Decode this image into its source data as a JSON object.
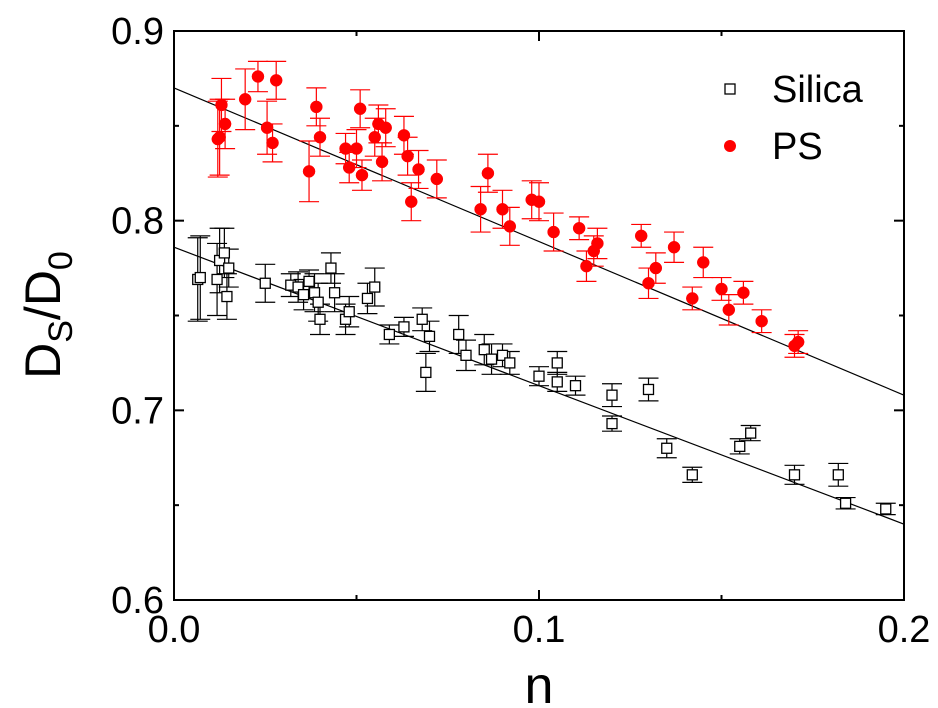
{
  "chart_data": {
    "type": "scatter",
    "xlabel": "n",
    "ylabel": {
      "main": "D",
      "sub1": "S",
      "slash": "/D",
      "sub2": "0"
    },
    "xlim": [
      0.0,
      0.2
    ],
    "ylim": [
      0.6,
      0.9
    ],
    "xticks": [
      "0.0",
      "0.1",
      "0.2"
    ],
    "yticks": [
      "0.6",
      "0.7",
      "0.8",
      "0.9"
    ],
    "xtick_values": [
      0.0,
      0.1,
      0.2
    ],
    "ytick_values": [
      0.6,
      0.7,
      0.8,
      0.9
    ],
    "legend_position": "top-right",
    "series": [
      {
        "name": "Silica",
        "marker": "open-square",
        "color": "#000000",
        "fit": {
          "x0": 0.0,
          "y0": 0.786,
          "x1": 0.2,
          "y1": 0.64
        },
        "points": [
          [
            0.0065,
            0.769,
            0.022
          ],
          [
            0.0072,
            0.77,
            0.022
          ],
          [
            0.0118,
            0.769,
            0.019
          ],
          [
            0.0125,
            0.779,
            0.017
          ],
          [
            0.0138,
            0.783,
            0.013
          ],
          [
            0.0145,
            0.76,
            0.012
          ],
          [
            0.015,
            0.775,
            0.01
          ],
          [
            0.025,
            0.767,
            0.01
          ],
          [
            0.032,
            0.766,
            0.006
          ],
          [
            0.034,
            0.765,
            0.008
          ],
          [
            0.0355,
            0.761,
            0.008
          ],
          [
            0.037,
            0.768,
            0.006
          ],
          [
            0.0385,
            0.762,
            0.01
          ],
          [
            0.0395,
            0.757,
            0.01
          ],
          [
            0.04,
            0.748,
            0.008
          ],
          [
            0.043,
            0.775,
            0.008
          ],
          [
            0.044,
            0.762,
            0.01
          ],
          [
            0.047,
            0.748,
            0.008
          ],
          [
            0.048,
            0.752,
            0.008
          ],
          [
            0.053,
            0.759,
            0.008
          ],
          [
            0.055,
            0.765,
            0.01
          ],
          [
            0.059,
            0.74,
            0.005
          ],
          [
            0.063,
            0.744,
            0.005
          ],
          [
            0.068,
            0.748,
            0.006
          ],
          [
            0.07,
            0.739,
            0.008
          ],
          [
            0.069,
            0.72,
            0.01
          ],
          [
            0.078,
            0.74,
            0.01
          ],
          [
            0.08,
            0.729,
            0.008
          ],
          [
            0.085,
            0.732,
            0.008
          ],
          [
            0.087,
            0.727,
            0.008
          ],
          [
            0.09,
            0.729,
            0.006
          ],
          [
            0.092,
            0.725,
            0.006
          ],
          [
            0.1,
            0.718,
            0.005
          ],
          [
            0.105,
            0.725,
            0.006
          ],
          [
            0.105,
            0.715,
            0.005
          ],
          [
            0.11,
            0.713,
            0.005
          ],
          [
            0.12,
            0.708,
            0.006
          ],
          [
            0.12,
            0.693,
            0.004
          ],
          [
            0.13,
            0.711,
            0.006
          ],
          [
            0.135,
            0.68,
            0.005
          ],
          [
            0.142,
            0.666,
            0.004
          ],
          [
            0.155,
            0.681,
            0.004
          ],
          [
            0.158,
            0.688,
            0.004
          ],
          [
            0.17,
            0.666,
            0.005
          ],
          [
            0.182,
            0.666,
            0.006
          ],
          [
            0.184,
            0.651,
            0.003
          ],
          [
            0.195,
            0.648,
            0.003
          ]
        ]
      },
      {
        "name": "PS",
        "marker": "filled-circle",
        "color": "#ff0000",
        "fit": {
          "x0": 0.0,
          "y0": 0.87,
          "x1": 0.2,
          "y1": 0.708
        },
        "points": [
          [
            0.012,
            0.843,
            0.02
          ],
          [
            0.0125,
            0.844,
            0.02
          ],
          [
            0.013,
            0.861,
            0.014
          ],
          [
            0.014,
            0.851,
            0.013
          ],
          [
            0.0195,
            0.864,
            0.016
          ],
          [
            0.023,
            0.876,
            0.008
          ],
          [
            0.0255,
            0.849,
            0.014
          ],
          [
            0.027,
            0.841,
            0.01
          ],
          [
            0.028,
            0.874,
            0.01
          ],
          [
            0.037,
            0.826,
            0.016
          ],
          [
            0.039,
            0.86,
            0.01
          ],
          [
            0.04,
            0.844,
            0.01
          ],
          [
            0.047,
            0.838,
            0.008
          ],
          [
            0.048,
            0.828,
            0.008
          ],
          [
            0.05,
            0.838,
            0.01
          ],
          [
            0.051,
            0.859,
            0.01
          ],
          [
            0.0515,
            0.824,
            0.008
          ],
          [
            0.055,
            0.844,
            0.01
          ],
          [
            0.056,
            0.851,
            0.01
          ],
          [
            0.057,
            0.831,
            0.01
          ],
          [
            0.058,
            0.849,
            0.01
          ],
          [
            0.063,
            0.845,
            0.01
          ],
          [
            0.064,
            0.834,
            0.01
          ],
          [
            0.065,
            0.81,
            0.01
          ],
          [
            0.067,
            0.827,
            0.01
          ],
          [
            0.072,
            0.822,
            0.01
          ],
          [
            0.084,
            0.806,
            0.012
          ],
          [
            0.086,
            0.825,
            0.01
          ],
          [
            0.09,
            0.806,
            0.01
          ],
          [
            0.092,
            0.797,
            0.01
          ],
          [
            0.098,
            0.811,
            0.01
          ],
          [
            0.1,
            0.81,
            0.01
          ],
          [
            0.104,
            0.794,
            0.01
          ],
          [
            0.111,
            0.796,
            0.006
          ],
          [
            0.113,
            0.776,
            0.008
          ],
          [
            0.115,
            0.784,
            0.008
          ],
          [
            0.116,
            0.788,
            0.008
          ],
          [
            0.128,
            0.792,
            0.006
          ],
          [
            0.13,
            0.767,
            0.008
          ],
          [
            0.132,
            0.775,
            0.008
          ],
          [
            0.137,
            0.786,
            0.008
          ],
          [
            0.142,
            0.759,
            0.006
          ],
          [
            0.145,
            0.778,
            0.008
          ],
          [
            0.15,
            0.764,
            0.006
          ],
          [
            0.152,
            0.753,
            0.008
          ],
          [
            0.156,
            0.762,
            0.006
          ],
          [
            0.161,
            0.747,
            0.006
          ],
          [
            0.17,
            0.734,
            0.006
          ],
          [
            0.171,
            0.736,
            0.006
          ]
        ]
      }
    ]
  }
}
